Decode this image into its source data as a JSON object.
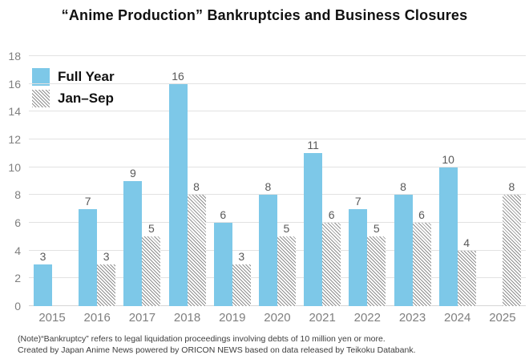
{
  "title": "“Anime Production” Bankruptcies and Business Closures",
  "legend": {
    "full_year_label": "Full Year",
    "jan_sep_label": "Jan–Sep"
  },
  "colors": {
    "full_year_bar": "#7dc8e8",
    "hatch_line": "#8f8f8f",
    "gridline": "#e2e2e2",
    "axis_text": "#7f7f7f",
    "value_text": "#595959",
    "title_text": "#111111"
  },
  "chart_data": {
    "type": "bar",
    "title": "“Anime Production” Bankruptcies and Business Closures",
    "categories": [
      "2015",
      "2016",
      "2017",
      "2018",
      "2019",
      "2020",
      "2021",
      "2022",
      "2023",
      "2024",
      "2025"
    ],
    "series": [
      {
        "name": "Full Year",
        "values": [
          3,
          7,
          9,
          16,
          6,
          8,
          11,
          7,
          8,
          10,
          null
        ]
      },
      {
        "name": "Jan–Sep",
        "values": [
          null,
          3,
          5,
          8,
          3,
          5,
          6,
          5,
          6,
          4,
          8
        ]
      }
    ],
    "xlabel": "",
    "ylabel": "",
    "ylim": [
      0,
      18
    ],
    "ytick_step": 2,
    "grid": true,
    "legend_position": "top-left"
  },
  "footnote": {
    "line1": "(Note)“Bankruptcy” refers to legal liquidation proceedings involving debts of 10 million yen or more.",
    "line2": "Created by Japan Anime News powered by ORICON NEWS based on data released by Teikoku Databank."
  }
}
